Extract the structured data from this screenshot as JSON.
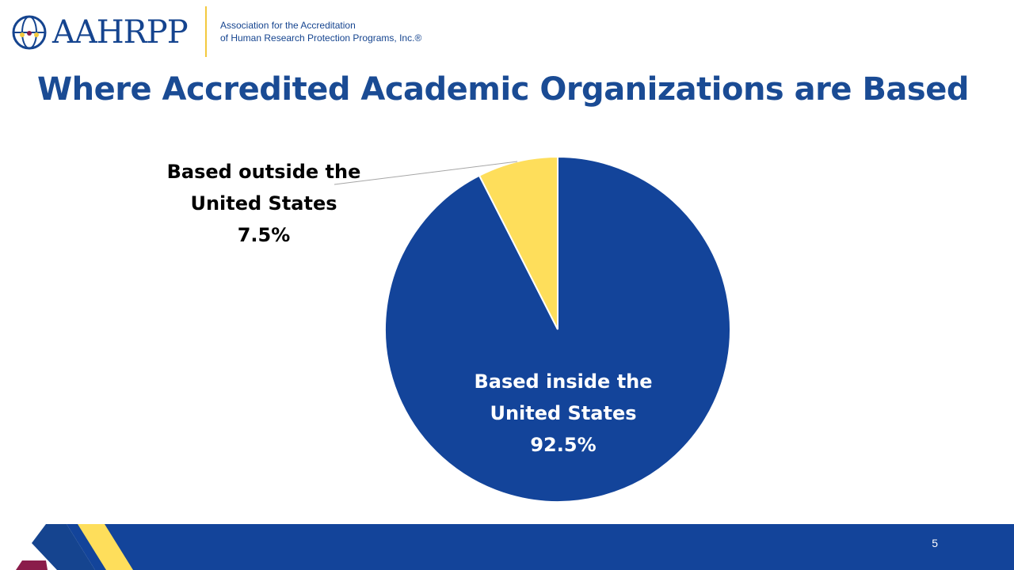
{
  "header": {
    "logo_word": "AAHRPP",
    "org_name_line1": "Association for the Accreditation",
    "org_name_line2": "of Human Research Protection Programs, Inc.®"
  },
  "slide": {
    "title": "Where Accredited Academic Organizations are Based",
    "page_number": "5"
  },
  "colors": {
    "brand_blue": "#13449a",
    "brand_yellow": "#fede5b",
    "accent_maroon": "#8a1c4a"
  },
  "chart_data": {
    "type": "pie",
    "title": "",
    "legend": "none",
    "slices": [
      {
        "lines": [
          "Based inside the",
          "United States",
          "92.5%"
        ],
        "value": 92.5,
        "color": "#13449a"
      },
      {
        "lines": [
          "Based outside the",
          "United States",
          "7.5%"
        ],
        "value": 7.5,
        "color": "#fede5b"
      }
    ]
  }
}
